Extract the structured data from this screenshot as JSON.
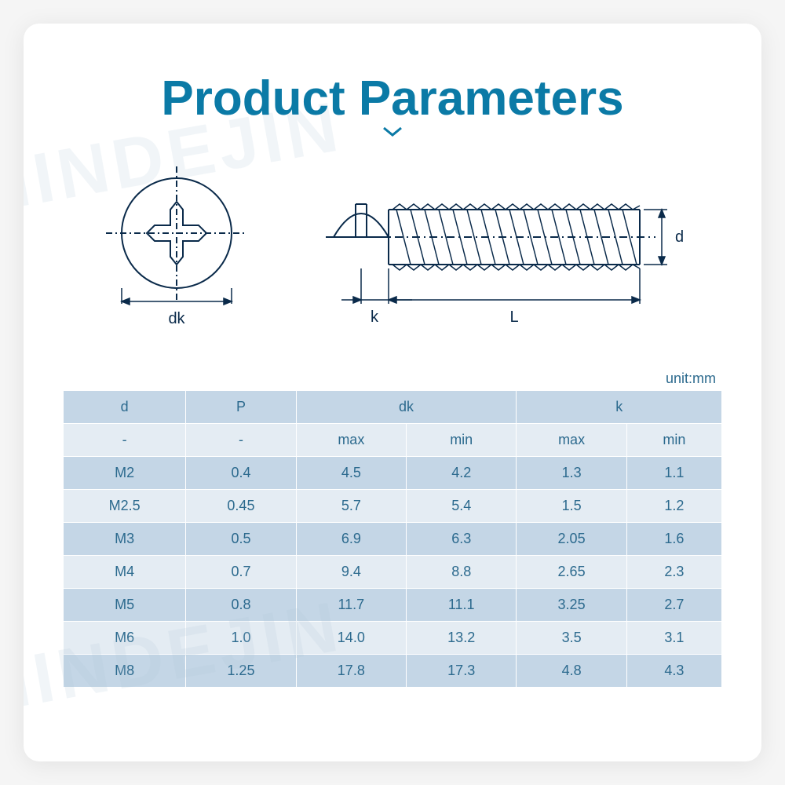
{
  "title": "Product Parameters",
  "watermark": "NINDEJIN",
  "unit_label": "unit:mm",
  "diagram": {
    "dk_label": "dk",
    "k_label": "k",
    "L_label": "L",
    "d_label": "d"
  },
  "table": {
    "columns": [
      "d",
      "P",
      "dk",
      "k"
    ],
    "sub": [
      "-",
      "-",
      "max",
      "min",
      "max",
      "min"
    ],
    "rows": [
      [
        "M2",
        "0.4",
        "4.5",
        "4.2",
        "1.3",
        "1.1"
      ],
      [
        "M2.5",
        "0.45",
        "5.7",
        "5.4",
        "1.5",
        "1.2"
      ],
      [
        "M3",
        "0.5",
        "6.9",
        "6.3",
        "2.05",
        "1.6"
      ],
      [
        "M4",
        "0.7",
        "9.4",
        "8.8",
        "2.65",
        "2.3"
      ],
      [
        "M5",
        "0.8",
        "11.7",
        "11.1",
        "3.25",
        "2.7"
      ],
      [
        "M6",
        "1.0",
        "14.0",
        "13.2",
        "3.5",
        "3.1"
      ],
      [
        "M8",
        "1.25",
        "17.8",
        "17.3",
        "4.8",
        "4.3"
      ]
    ]
  },
  "colors": {
    "title": "#0b7aa6",
    "header_bg": "#c4d6e6",
    "row_alt_bg": "#e4ecf3",
    "text": "#2c6a8e"
  }
}
